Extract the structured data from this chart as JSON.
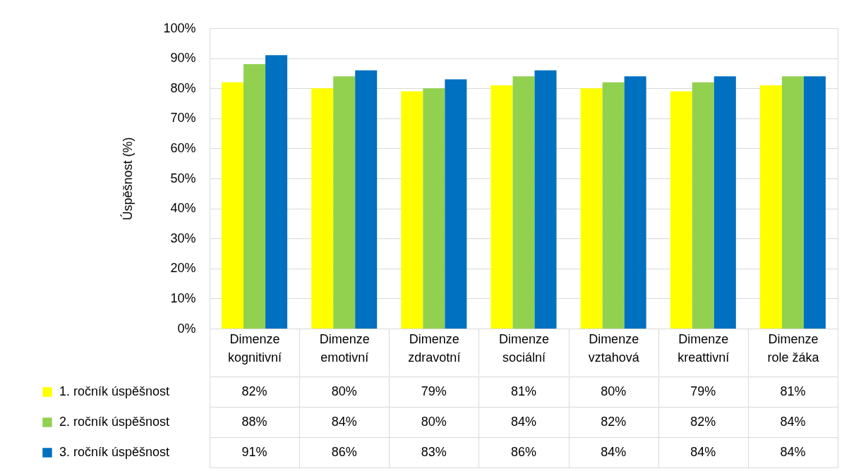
{
  "chart_data": {
    "type": "bar",
    "ylabel": "Úspěšnost (%)",
    "categories": [
      "Dimenze kognitivní",
      "Dimenze emotivní",
      "Dimenze zdravotní",
      "Dimenze sociální",
      "Dimenze vztahová",
      "Dimenze kreattivní",
      "Dimenze role žáka"
    ],
    "series": [
      {
        "name": "1. ročník úspěšnost",
        "color": "#ffff00",
        "values": [
          82,
          80,
          79,
          81,
          80,
          79,
          81
        ],
        "value_labels": [
          "82%",
          "80%",
          "79%",
          "81%",
          "80%",
          "79%",
          "81%"
        ]
      },
      {
        "name": "2. ročník úspěšnost",
        "color": "#92d050",
        "values": [
          88,
          84,
          80,
          84,
          82,
          82,
          84
        ],
        "value_labels": [
          "88%",
          "84%",
          "80%",
          "84%",
          "82%",
          "82%",
          "84%"
        ]
      },
      {
        "name": "3. ročník úspěšnost",
        "color": "#0070c0",
        "values": [
          91,
          86,
          83,
          86,
          84,
          84,
          84
        ],
        "value_labels": [
          "91%",
          "86%",
          "83%",
          "86%",
          "84%",
          "84%",
          "84%"
        ]
      }
    ],
    "ylim": [
      0,
      100
    ],
    "yticks": [
      {
        "value": 0,
        "label": "0%"
      },
      {
        "value": 10,
        "label": "10%"
      },
      {
        "value": 20,
        "label": "20%"
      },
      {
        "value": 30,
        "label": "30%"
      },
      {
        "value": 40,
        "label": "40%"
      },
      {
        "value": 50,
        "label": "50%"
      },
      {
        "value": 60,
        "label": "60%"
      },
      {
        "value": 70,
        "label": "70%"
      },
      {
        "value": 80,
        "label": "80%"
      },
      {
        "value": 90,
        "label": "90%"
      },
      {
        "value": 100,
        "label": "100%"
      }
    ],
    "grid": "y",
    "legend": "bottom left"
  }
}
